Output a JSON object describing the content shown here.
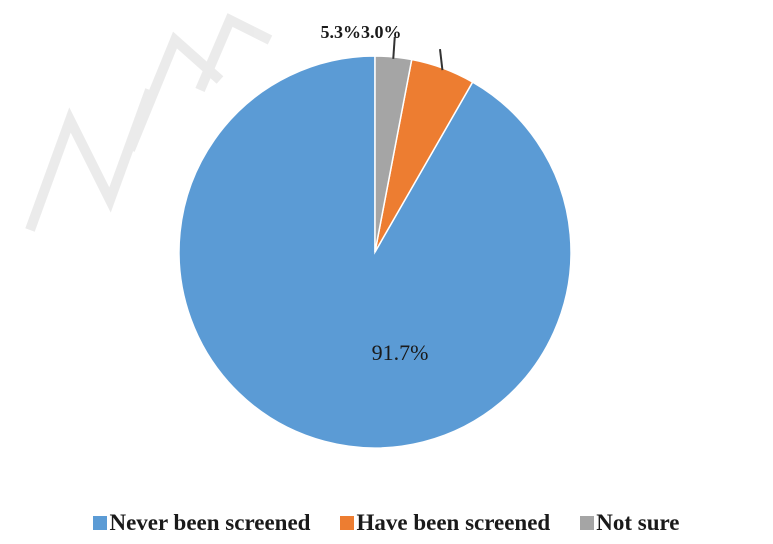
{
  "chart_data": {
    "type": "pie",
    "title": "",
    "slices": [
      {
        "label": "Never been screened",
        "value": 91.7,
        "display": "91.7%",
        "color": "#5B9BD5"
      },
      {
        "label": "Have been screened",
        "value": 5.3,
        "display": "5.3%",
        "color": "#ED7D31"
      },
      {
        "label": "Not sure",
        "value": 3.0,
        "display": "3.0%",
        "color": "#A5A5A5"
      }
    ],
    "start_angle_deg": 0,
    "direction": "counterclockwise",
    "legend_position": "bottom"
  }
}
